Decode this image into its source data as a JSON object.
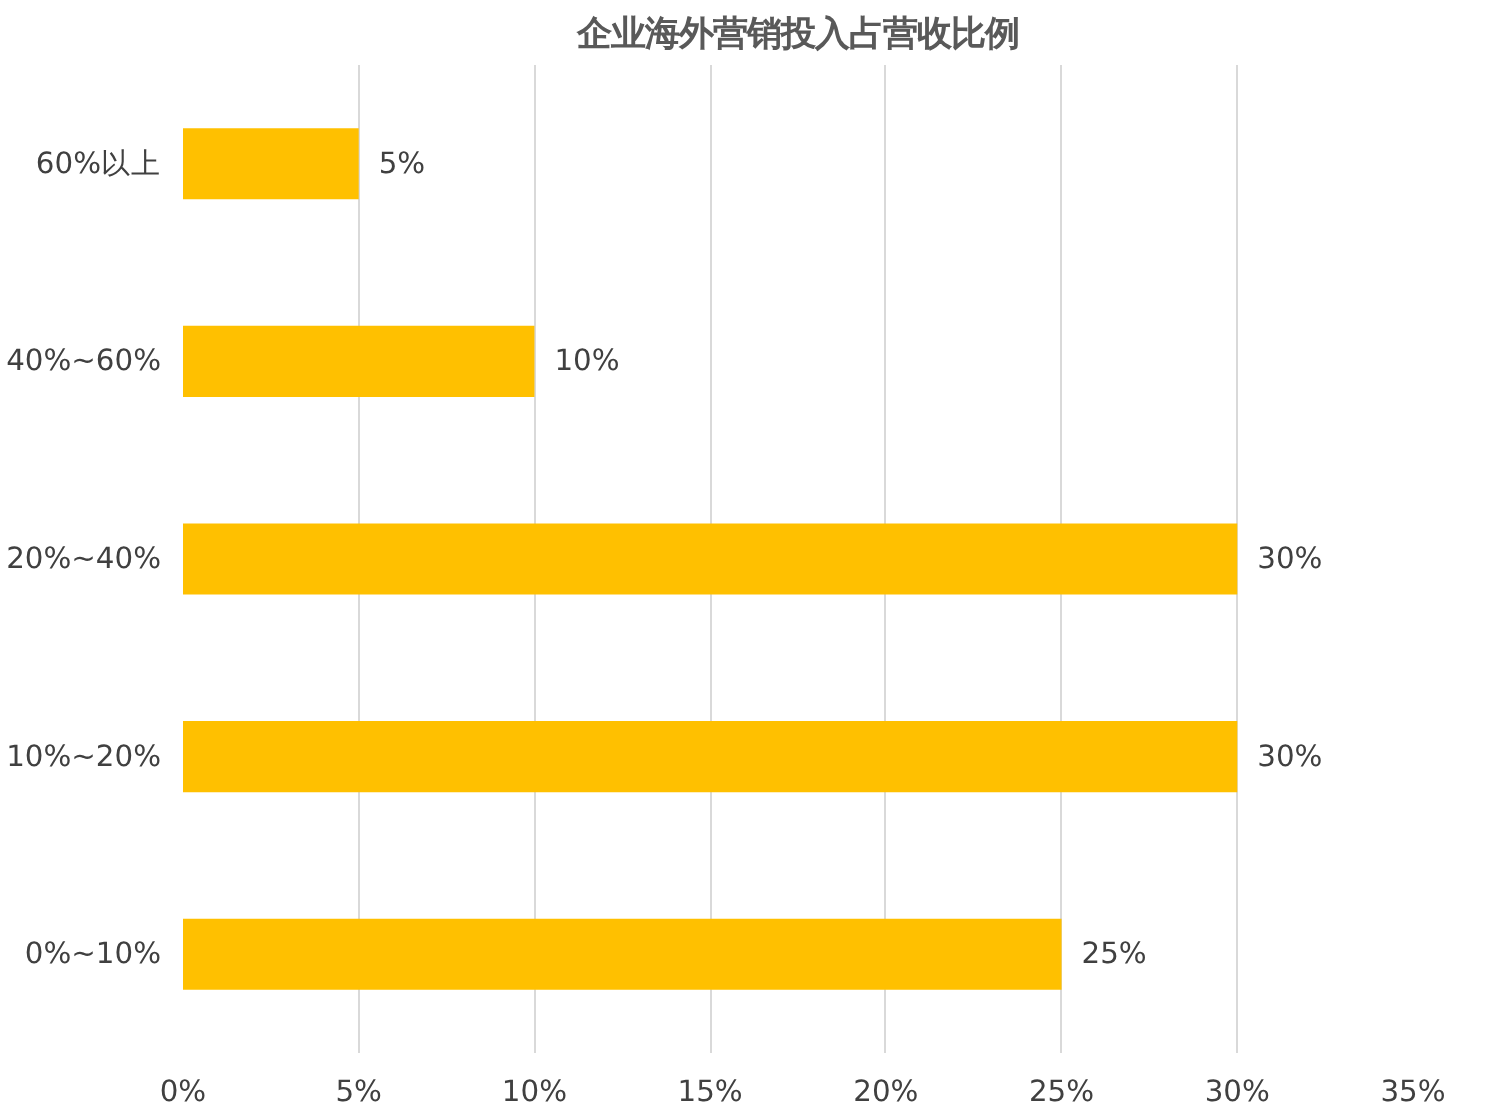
{
  "chart_data": {
    "type": "bar",
    "orientation": "horizontal",
    "title": "企业海外营销投入占营收比例",
    "categories": [
      "60%以上",
      "40%~60%",
      "20%~40%",
      "10%~20%",
      "0%~10%"
    ],
    "values": [
      5,
      10,
      30,
      30,
      25
    ],
    "value_labels": [
      "5%",
      "10%",
      "30%",
      "30%",
      "25%"
    ],
    "color": "#ffc000",
    "xlim": [
      0,
      35
    ],
    "xticks": [
      {
        "value": 0,
        "label": "0%"
      },
      {
        "value": 5,
        "label": "5%"
      },
      {
        "value": 10,
        "label": "10%"
      },
      {
        "value": 15,
        "label": "15%"
      },
      {
        "value": 20,
        "label": "20%"
      },
      {
        "value": 25,
        "label": "25%"
      },
      {
        "value": 30,
        "label": "30%"
      },
      {
        "value": 35,
        "label": "35%"
      }
    ],
    "grid": "x"
  }
}
